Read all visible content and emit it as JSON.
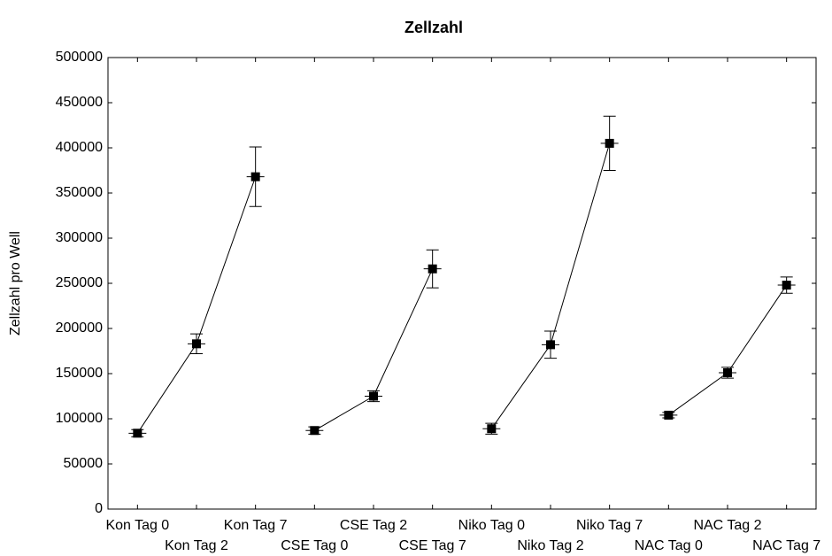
{
  "chart_data": {
    "type": "line",
    "title": "Zellzahl",
    "y_label": "Zellzahl pro Well",
    "categories": [
      "Kon Tag 0",
      "Kon Tag 2",
      "Kon Tag 7",
      "CSE Tag 0",
      "CSE Tag 2",
      "CSE Tag 7",
      "Niko Tag 0",
      "Niko Tag 2",
      "Niko Tag 7",
      "NAC Tag 0",
      "NAC Tag 2",
      "NAC Tag 7"
    ],
    "series": [
      {
        "color": "#000000",
        "values": [
          84000,
          183000,
          368000,
          null,
          null,
          null,
          null,
          null,
          null,
          null,
          null,
          null
        ],
        "errors": [
          4000,
          11000,
          33000,
          null,
          null,
          null,
          null,
          null,
          null,
          null,
          null,
          null
        ]
      },
      {
        "color": "#000000",
        "values": [
          null,
          null,
          null,
          87000,
          125000,
          266000,
          null,
          null,
          null,
          null,
          null,
          null
        ],
        "errors": [
          null,
          null,
          null,
          4000,
          6000,
          21000,
          null,
          null,
          null,
          null,
          null,
          null
        ]
      },
      {
        "color": "#000000",
        "values": [
          null,
          null,
          null,
          null,
          null,
          null,
          89000,
          182000,
          405000,
          null,
          null,
          null
        ],
        "errors": [
          null,
          null,
          null,
          null,
          null,
          null,
          6000,
          15000,
          30000,
          null,
          null,
          null
        ]
      },
      {
        "color": "#000000",
        "values": [
          null,
          null,
          null,
          null,
          null,
          null,
          null,
          null,
          null,
          104000,
          151000,
          248000
        ],
        "errors": [
          null,
          null,
          null,
          null,
          null,
          null,
          null,
          null,
          null,
          3000,
          6000,
          9000
        ]
      }
    ],
    "ylim": [
      0,
      500000
    ],
    "yticks": [
      0,
      50000,
      100000,
      150000,
      200000,
      250000,
      300000,
      350000,
      400000,
      450000,
      500000
    ],
    "grid": false
  }
}
